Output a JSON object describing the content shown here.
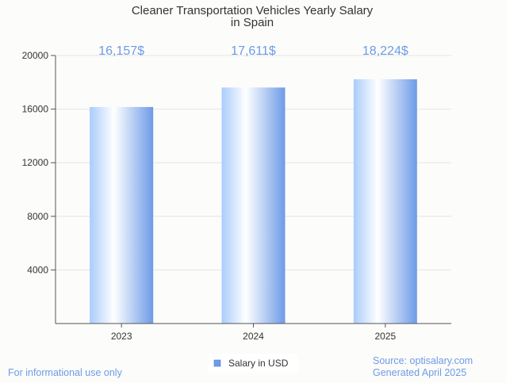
{
  "chart_data": {
    "type": "bar",
    "title_lines": [
      "Cleaner Transportation Vehicles Yearly Salary",
      "in Spain"
    ],
    "categories": [
      "2023",
      "2024",
      "2025"
    ],
    "series": [
      {
        "name": "Salary in USD",
        "values": [
          16157,
          17611,
          18224
        ],
        "labels": [
          "16,157$",
          "17,611$",
          "18,224$"
        ]
      }
    ],
    "ylim": [
      0,
      20000
    ],
    "yticks": [
      4000,
      8000,
      12000,
      16000,
      20000
    ],
    "grid": true,
    "legend": "bottom-center",
    "colors": {
      "bar_light": "#ffffff",
      "bar_mid": "#a9ccfb",
      "bar_dark": "#6d9be8",
      "accent_text": "#6d9be8",
      "grid": "#e4e4e4",
      "axis": "#555555"
    }
  },
  "footer": {
    "left_note": "For informational use only",
    "source": "Source: optisalary.com",
    "generated": "Generated April 2025"
  }
}
